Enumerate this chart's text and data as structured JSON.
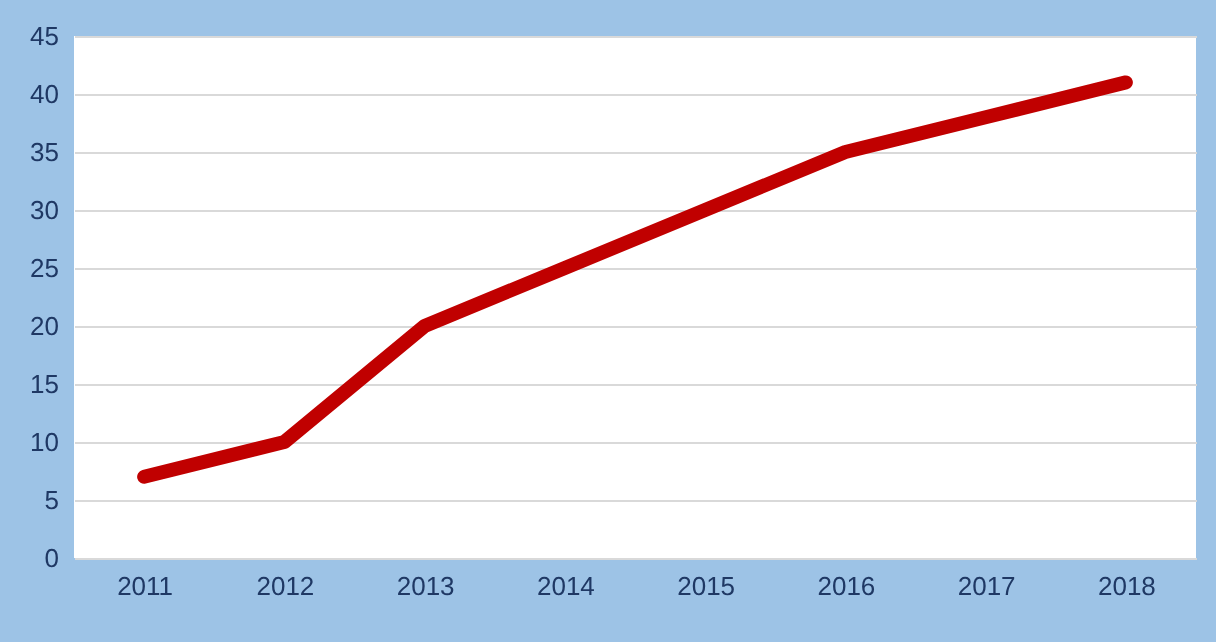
{
  "chart_data": {
    "type": "line",
    "categories": [
      "2011",
      "2012",
      "2013",
      "2014",
      "2015",
      "2016",
      "2017",
      "2018"
    ],
    "series": [
      {
        "color": "#c00000",
        "values": [
          7,
          10,
          20,
          25,
          30,
          35,
          38,
          41
        ]
      }
    ],
    "ylim": [
      0,
      45
    ],
    "yticks": [
      0,
      5,
      10,
      15,
      20,
      25,
      30,
      35,
      40,
      45
    ],
    "grid": "y",
    "marker": "none",
    "line_style": "solid"
  }
}
